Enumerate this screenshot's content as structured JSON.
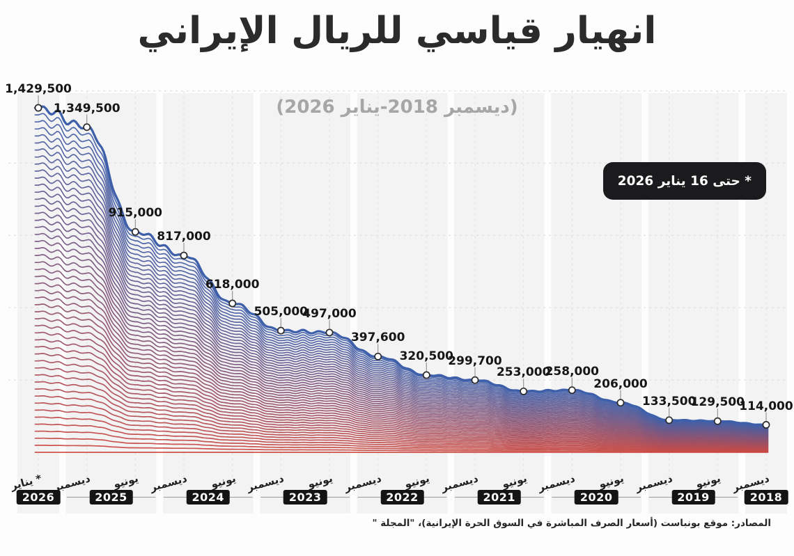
{
  "title": "انهيار قياسي للريال الإيراني",
  "subtitle": "(ديسمبر 2018-يناير 2026)",
  "note_badge": "* حتى 16 يناير 2026",
  "source": "المصادر: موقع بونباست (أسعار الصرف المباشرة في السوق الحرة الإيرانية)، \"المجلة \"",
  "chart_data": {
    "type": "area",
    "subtype": "ridgeline-gradient",
    "title": "انهيار قياسي للريال الإيراني",
    "subtitle": "(ديسمبر 2018-يناير 2026)",
    "x_axis_order": "newest-on-left (RTL time axis)",
    "ylim": [
      0,
      1500000
    ],
    "gridline_values": [
      1500000,
      1200000,
      900000,
      600000,
      300000
    ],
    "grid": "on",
    "points": [
      {
        "label": "1,429,500",
        "value": 1429500,
        "month": "* يناير",
        "year": "2026"
      },
      {
        "label": "1,349,500",
        "value": 1349500,
        "month": "ديسمبر",
        "year": "2025"
      },
      {
        "label": "915,000",
        "value": 915000,
        "month": "يونيو",
        "year": "2025"
      },
      {
        "label": "817,000",
        "value": 817000,
        "month": "ديسمبر",
        "year": "2024"
      },
      {
        "label": "618,000",
        "value": 618000,
        "month": "يونيو",
        "year": "2024"
      },
      {
        "label": "505,000",
        "value": 505000,
        "month": "ديسمبر",
        "year": "2023"
      },
      {
        "label": "497,000",
        "value": 497000,
        "month": "يونيو",
        "year": "2023"
      },
      {
        "label": "397,600",
        "value": 397600,
        "month": "ديسمبر",
        "year": "2022"
      },
      {
        "label": "320,500",
        "value": 320500,
        "month": "يونيو",
        "year": "2022"
      },
      {
        "label": "299,700",
        "value": 299700,
        "month": "ديسمبر",
        "year": "2021"
      },
      {
        "label": "253,000",
        "value": 253000,
        "month": "يونيو",
        "year": "2021"
      },
      {
        "label": "258,000",
        "value": 258000,
        "month": "ديسمبر",
        "year": "2020"
      },
      {
        "label": "206,000",
        "value": 206000,
        "month": "يونيو",
        "year": "2020"
      },
      {
        "label": "133,500",
        "value": 133500,
        "month": "ديسمبر",
        "year": "2019"
      },
      {
        "label": "129,500",
        "value": 129500,
        "month": "يونيو",
        "year": "2019"
      },
      {
        "label": "114,000",
        "value": 114000,
        "month": "ديسمبر",
        "year": "2018"
      }
    ],
    "years": [
      {
        "label": "2026",
        "tick_count": 1
      },
      {
        "label": "2025",
        "tick_count": 2
      },
      {
        "label": "2024",
        "tick_count": 2
      },
      {
        "label": "2023",
        "tick_count": 2
      },
      {
        "label": "2022",
        "tick_count": 2
      },
      {
        "label": "2021",
        "tick_count": 2
      },
      {
        "label": "2020",
        "tick_count": 2
      },
      {
        "label": "2019",
        "tick_count": 2
      },
      {
        "label": "2018",
        "tick_count": 1
      }
    ],
    "colors": {
      "line_top": "#3E5FA9",
      "line_bottom": "#CC463F",
      "marker_fill": "#FFFFFF",
      "marker_stroke": "#2B2B2B",
      "leader_line": "#8F8F8F",
      "band_fill": "#F3F3F4",
      "gridline": "#E0E0E0",
      "year_line": "#9A9A9A",
      "year_badge_bg": "#141414",
      "year_badge_text": "#FFFFFF",
      "note_badge_bg": "#1B1B1D",
      "note_badge_text": "#FFFFFF"
    }
  }
}
